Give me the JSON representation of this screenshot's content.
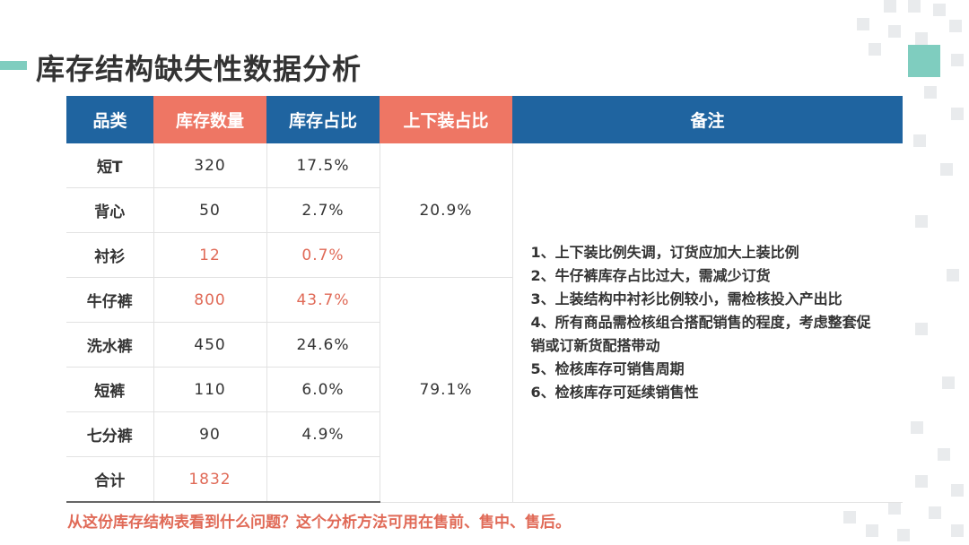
{
  "title": "库存结构缺失性数据分析",
  "table": {
    "headers": [
      "品类",
      "库存数量",
      "库存占比",
      "上下装占比",
      "备注"
    ],
    "rows": [
      {
        "category": "短T",
        "qty": "320",
        "ratio": "17.5%"
      },
      {
        "category": "背心",
        "qty": "50",
        "ratio": "2.7%"
      },
      {
        "category": "衬衫",
        "qty": "12",
        "ratio": "0.7%"
      },
      {
        "category": "牛仔裤",
        "qty": "800",
        "ratio": "43.7%"
      },
      {
        "category": "洗水裤",
        "qty": "450",
        "ratio": "24.6%"
      },
      {
        "category": "短裤",
        "qty": "110",
        "ratio": "6.0%"
      },
      {
        "category": "七分裤",
        "qty": "90",
        "ratio": "4.9%"
      },
      {
        "category": "合计",
        "qty": "1832",
        "ratio": ""
      }
    ],
    "top_ratio": "20.9%",
    "bottom_ratio": "79.1%",
    "notes": [
      "1、上下装比例失调，订货应加大上装比例",
      "2、牛仔裤库存占比过大，需减少订货",
      "3、上装结构中衬衫比例较小，需检核投入产出比",
      "4、所有商品需检核组合搭配销售的程度，考虑整套促销或订新货配搭带动",
      "5、检核库存可销售周期",
      "6、检核库存可延续销售性"
    ]
  },
  "footer_question": "从这份库存结构表看到什么问题？这个分析方法可用在售前、售中、售后。",
  "colors": {
    "header_blue": "#1f64a0",
    "header_red": "#ee7664",
    "highlight": "#e06a57",
    "accent_teal": "#7fcdbf"
  }
}
